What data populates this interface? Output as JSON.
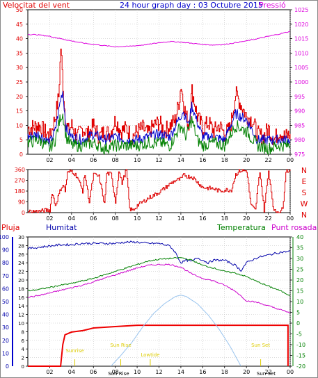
{
  "header": {
    "wind_label": "Velocitat del vent",
    "title": "24 hour graph day : 03 Octubre 2015",
    "pressure_label": "Pressió"
  },
  "mid_labels": {
    "rain": "Pluja",
    "humidity": "Humitat",
    "temperature": "Temperatura",
    "dewpoint": "Punt rosada"
  },
  "colors": {
    "wind_speed": "#e00000",
    "wind_gust_avg": "#0000cc",
    "wind_low": "#008000",
    "pressure": "#dd00dd",
    "direction": "#dd0000",
    "rain": "#ee0000",
    "humidity": "#0000aa",
    "temperature": "#008000",
    "dewpoint": "#cc00cc",
    "solar": "#99c4ee",
    "event": "#ddcc00"
  },
  "chart_data": [
    {
      "type": "line",
      "name": "wind-pressure",
      "x_ticks": [
        "02",
        "04",
        "06",
        "08",
        "10",
        "12",
        "14",
        "16",
        "18",
        "20",
        "22",
        "00"
      ],
      "ylim_left": [
        0,
        50
      ],
      "yticks_left": [
        "0",
        "5",
        "10",
        "15",
        "20",
        "25",
        "30",
        "35",
        "40",
        "45",
        "50"
      ],
      "ylim_right": [
        975,
        1025
      ],
      "yticks_right": [
        "975",
        "980",
        "985",
        "990",
        "995",
        "1000",
        "1005",
        "1010",
        "1015",
        "1020",
        "1025"
      ],
      "series": [
        {
          "key": "wind_speed",
          "x": [
            0,
            1,
            1.5,
            2,
            2.5,
            2.8,
            3.0,
            3.2,
            3.4,
            3.7,
            4,
            4.5,
            5,
            5.5,
            6,
            6.5,
            7,
            7.5,
            8,
            8.5,
            9,
            9.5,
            10,
            10.5,
            11,
            11.5,
            12,
            12.5,
            13,
            13.5,
            13.8,
            14,
            14.3,
            14.7,
            15,
            15.5,
            16,
            16.5,
            17,
            17.5,
            18,
            18.5,
            19,
            19.5,
            20,
            20.5,
            21,
            21.5,
            22,
            22.5,
            23,
            23.5,
            24
          ],
          "values": [
            9,
            10,
            8,
            6,
            13,
            20,
            37,
            24,
            12,
            8,
            10,
            6,
            9,
            7,
            10,
            6,
            8,
            7,
            12,
            8,
            9,
            6,
            8,
            9,
            7,
            10,
            11,
            8,
            10,
            12,
            18,
            24,
            16,
            10,
            22,
            13,
            9,
            11,
            8,
            10,
            7,
            9,
            21,
            17,
            13,
            12,
            7,
            6,
            9,
            5,
            8,
            6,
            7
          ]
        },
        {
          "key": "wind_gust_avg",
          "x": [
            0,
            1,
            2,
            2.5,
            3,
            3.2,
            3.5,
            4,
            5,
            6,
            7,
            8,
            9,
            10,
            11,
            12,
            13,
            13.8,
            14.2,
            14.7,
            15,
            15.5,
            16,
            17,
            18,
            19,
            20,
            21,
            22,
            23,
            24
          ],
          "values": [
            6,
            7,
            4,
            8,
            19,
            22,
            9,
            6,
            5,
            7,
            5,
            6,
            5,
            5,
            6,
            7,
            6,
            12,
            15,
            10,
            17,
            11,
            6,
            6,
            5,
            14,
            12,
            5,
            5,
            5,
            5
          ]
        },
        {
          "key": "wind_low",
          "x": [
            0,
            1,
            2,
            2.5,
            3,
            3.2,
            3.5,
            4,
            5,
            6,
            7,
            8,
            9,
            10,
            11,
            12,
            13,
            14,
            14.5,
            15,
            15.5,
            16,
            17,
            18,
            19,
            20,
            21,
            22,
            23,
            24
          ],
          "values": [
            4,
            5,
            2,
            5,
            13,
            14,
            6,
            3,
            3,
            4,
            2,
            3,
            3,
            3,
            4,
            4,
            3,
            10,
            6,
            12,
            5,
            3,
            4,
            3,
            10,
            8,
            3,
            2,
            3,
            3
          ]
        },
        {
          "key": "pressure",
          "x": [
            0,
            1,
            2,
            3,
            4,
            5,
            6,
            7,
            8,
            9,
            10,
            11,
            12,
            13,
            14,
            15,
            16,
            17,
            18,
            19,
            20,
            21,
            22,
            23,
            24
          ],
          "values": [
            1016.5,
            1016.3,
            1015.8,
            1015.0,
            1014.2,
            1013.5,
            1013.0,
            1012.6,
            1012.2,
            1012.3,
            1012.6,
            1013.0,
            1013.6,
            1014.0,
            1013.8,
            1013.4,
            1013.0,
            1012.8,
            1013.0,
            1013.6,
            1014.2,
            1015.0,
            1015.8,
            1016.6,
            1017.5
          ]
        }
      ]
    },
    {
      "type": "line",
      "name": "wind-direction",
      "x_ticks": [
        "02",
        "04",
        "06",
        "08",
        "10",
        "12",
        "14",
        "16",
        "18",
        "20",
        "22",
        "00"
      ],
      "ylim": [
        0,
        360
      ],
      "yticks": [
        "0",
        "90",
        "180",
        "270",
        "360"
      ],
      "compass_labels": [
        "N",
        "W",
        "S",
        "E",
        "N"
      ],
      "series": [
        {
          "key": "direction",
          "x": [
            0,
            1,
            1.6,
            2.0,
            2.2,
            2.5,
            3,
            3.2,
            3.4,
            3.6,
            4.0,
            4.5,
            5,
            5.2,
            5.6,
            6,
            6.5,
            7,
            7.2,
            7.6,
            8,
            8.3,
            8.6,
            9,
            9.3,
            9.6,
            10,
            11,
            12,
            13,
            13.5,
            14,
            14.3,
            14.6,
            15,
            16,
            17,
            17.5,
            18,
            18.6,
            19,
            19.4,
            20,
            20.4,
            20.8,
            21.2,
            21.6,
            22,
            22.5,
            23,
            23.3,
            23.6,
            24
          ],
          "values": [
            10,
            10,
            20,
            20,
            170,
            60,
            200,
            230,
            180,
            330,
            350,
            300,
            180,
            320,
            90,
            320,
            300,
            70,
            330,
            320,
            90,
            350,
            250,
            360,
            30,
            20,
            60,
            120,
            170,
            240,
            270,
            280,
            320,
            300,
            300,
            210,
            200,
            180,
            190,
            190,
            320,
            350,
            350,
            60,
            20,
            350,
            20,
            350,
            10,
            10,
            30,
            350,
            350
          ]
        }
      ]
    },
    {
      "type": "line",
      "name": "rain-humidity-temperature",
      "x_ticks": [
        "02",
        "04",
        "06",
        "08",
        "10",
        "12",
        "14",
        "16",
        "18",
        "20",
        "22",
        "00"
      ],
      "ylim_rain": [
        0,
        10
      ],
      "yticks_rain": [
        "0",
        "2",
        "4",
        "6",
        "8",
        "10"
      ],
      "ylim_hum": [
        0,
        100
      ],
      "yticks_hum": [
        "0",
        "10",
        "20",
        "30",
        "40",
        "50",
        "60",
        "70",
        "80",
        "90",
        "100"
      ],
      "ylim_left2": [
        0,
        30
      ],
      "yticks_left2": [
        "0",
        "2",
        "4",
        "6",
        "8",
        "10",
        "12",
        "14",
        "16",
        "18",
        "20",
        "22",
        "24",
        "26",
        "28",
        "30"
      ],
      "ylim_temp": [
        -20,
        40
      ],
      "yticks_temp": [
        "-20",
        "-15",
        "-10",
        "-5",
        "0",
        "5",
        "10",
        "15",
        "20",
        "25",
        "30",
        "35",
        "40"
      ],
      "events": [
        "Sunrise",
        "Sun Rise",
        "Lowtide",
        "Sun Set"
      ],
      "event_ticks": [
        "Sun Rise",
        "Sun Set"
      ],
      "series": [
        {
          "key": "rain",
          "x": [
            0,
            3.0,
            3.2,
            3.4,
            4,
            5,
            5.5,
            6,
            8,
            10,
            12,
            14,
            16,
            18,
            20,
            22,
            23,
            23.8,
            23.8
          ],
          "values": [
            0,
            0,
            1.6,
            2.3,
            2.5,
            2.6,
            2.7,
            2.8,
            2.9,
            3.0,
            3.0,
            3.0,
            3.0,
            3.0,
            3.0,
            3.0,
            3.0,
            3.0,
            0
          ]
        },
        {
          "key": "humidity",
          "x": [
            0,
            1,
            2,
            3,
            4,
            5,
            6,
            7,
            8,
            9,
            10,
            11,
            12,
            13,
            13.5,
            14,
            14.5,
            15,
            15.5,
            16,
            16.5,
            17,
            18,
            19,
            19.5,
            20,
            21,
            22,
            23,
            24
          ],
          "values": [
            91,
            92,
            93,
            94,
            94,
            95,
            95,
            95,
            95,
            96,
            96,
            95,
            95,
            93,
            88,
            80,
            82,
            81,
            84,
            82,
            80,
            82,
            82,
            78,
            74,
            80,
            84,
            86,
            88,
            89
          ]
        },
        {
          "key": "temperature",
          "x": [
            0,
            1,
            2,
            3,
            4,
            5,
            6,
            7,
            8,
            9,
            10,
            11,
            12,
            13,
            14,
            15,
            16,
            17,
            18,
            19,
            20,
            21,
            22,
            23,
            24
          ],
          "values": [
            17.5,
            17.8,
            18.3,
            18.8,
            19.2,
            19.8,
            20.4,
            21.2,
            22.0,
            22.8,
            23.6,
            24.4,
            24.8,
            25.0,
            25.2,
            24.6,
            23.4,
            22.8,
            22.0,
            21.6,
            20.8,
            19.6,
            18.6,
            17.6,
            16.4
          ]
        },
        {
          "key": "dewpoint",
          "x": [
            0,
            1,
            2,
            3,
            4,
            5,
            6,
            7,
            8,
            9,
            10,
            11,
            12,
            13,
            14,
            15,
            16,
            17,
            18,
            19,
            20,
            21,
            22,
            23,
            24
          ],
          "values": [
            16.0,
            16.4,
            17.0,
            17.6,
            18.2,
            18.8,
            19.6,
            20.4,
            21.2,
            22.0,
            22.8,
            23.4,
            23.6,
            23.6,
            23.0,
            21.4,
            20.4,
            19.8,
            18.8,
            17.4,
            15.2,
            14.8,
            14.0,
            13.2,
            12.4
          ]
        },
        {
          "key": "solar",
          "x": [
            7.6,
            8.5,
            9.5,
            10.5,
            11.5,
            12.5,
            13.5,
            14.0,
            14.5,
            15.5,
            16.5,
            17.5,
            18.5,
            19.5
          ],
          "values": [
            0,
            15,
            33,
            55,
            74,
            88,
            98,
            100,
            98,
            88,
            72,
            52,
            28,
            0
          ]
        }
      ]
    }
  ]
}
